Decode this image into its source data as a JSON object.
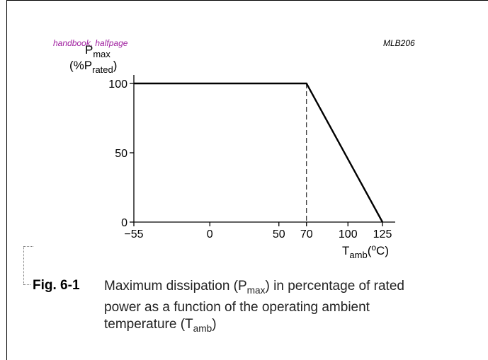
{
  "header": {
    "tag_left": "handbook, halfpage",
    "tag_right": "MLB206"
  },
  "caption": {
    "label": "Fig. 6-1",
    "line1_pre": "Maximum dissipation (P",
    "line1_sub": "max",
    "line1_post": ") in percentage of rated",
    "line2": "power as a function of the operating ambient",
    "line3_pre": "temperature (T",
    "line3_sub": "amb",
    "line3_post": ")"
  },
  "chart_data": {
    "type": "line",
    "ylabel": {
      "main": "P",
      "main_sub": "max",
      "unit_pre": "(%P",
      "unit_sub": "rated",
      "unit_post": ")"
    },
    "xlabel": {
      "main": "T",
      "main_sub": "amb",
      "unit_pre": "(",
      "unit_sup": "o",
      "unit_post": "C)"
    },
    "xlim": [
      -55,
      125
    ],
    "ylim": [
      0,
      100
    ],
    "x_ticks": [
      -55,
      0,
      50,
      70,
      100,
      125
    ],
    "x_tick_labels": [
      "−55",
      "0",
      "50",
      "70",
      "100",
      "125"
    ],
    "y_ticks": [
      0,
      50,
      100
    ],
    "y_tick_labels": [
      "0",
      "50",
      "100"
    ],
    "grid": false,
    "series": [
      {
        "x": [
          -55,
          70,
          125
        ],
        "y": [
          100,
          100,
          0
        ]
      }
    ],
    "reference_lines": [
      {
        "x": 70,
        "y_from": 0,
        "y_to": 100,
        "style": "dashed"
      }
    ]
  }
}
